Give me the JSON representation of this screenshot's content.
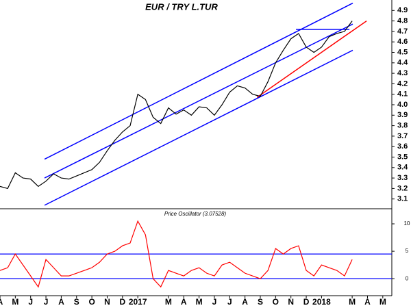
{
  "chart_data": [
    {
      "type": "line",
      "title": "EUR / TRY L.TUR",
      "x": [
        0,
        0.5,
        1,
        1.5,
        2,
        2.5,
        3,
        3.5,
        4,
        4.5,
        5,
        5.5,
        6,
        6.5,
        7,
        7.5,
        8,
        8.5,
        9,
        9.5,
        10,
        10.5,
        11,
        11.5,
        12,
        12.5,
        13,
        13.5,
        14,
        14.5,
        15,
        15.5,
        16,
        16.5,
        17,
        17.5,
        18,
        18.5,
        19,
        19.5,
        20,
        20.5,
        21,
        21.5,
        22,
        22.5,
        23
      ],
      "series": [
        {
          "color": "#000000",
          "values": [
            3.22,
            3.2,
            3.35,
            3.3,
            3.29,
            3.22,
            3.27,
            3.34,
            3.3,
            3.29,
            3.32,
            3.35,
            3.38,
            3.45,
            3.56,
            3.66,
            3.74,
            3.8,
            4.1,
            4.05,
            3.88,
            3.82,
            3.97,
            3.91,
            3.95,
            3.9,
            3.98,
            3.97,
            3.9,
            4.0,
            4.12,
            4.18,
            4.16,
            4.1,
            4.08,
            4.22,
            4.4,
            4.52,
            4.63,
            4.68,
            4.55,
            4.5,
            4.55,
            4.65,
            4.68,
            4.7,
            4.8
          ]
        }
      ],
      "lines": [
        {
          "color": "#0000ff",
          "x": [
            2.91,
            23.04
          ],
          "values": [
            3.48,
            4.97
          ]
        },
        {
          "color": "#0000ff",
          "x": [
            2.91,
            23.04
          ],
          "values": [
            3.3,
            4.77
          ]
        },
        {
          "color": "#0000ff",
          "x": [
            2.91,
            23.04
          ],
          "values": [
            3.04,
            4.52
          ]
        },
        {
          "color": "#ff0000",
          "x": [
            16.78,
            23.94
          ],
          "values": [
            4.07,
            4.8
          ]
        },
        {
          "color": "#0000ff",
          "x": [
            19.33,
            22.82
          ],
          "values": [
            4.72,
            4.72
          ]
        }
      ],
      "xlim": [
        0,
        25.5
      ],
      "ylim": [
        3.0,
        5.0
      ],
      "yticks": [
        3.1,
        3.2,
        3.3,
        3.4,
        3.5,
        3.6,
        3.7,
        3.8,
        3.9,
        {
          "value": 4,
          "label": "4.0"
        },
        4.1,
        4.2,
        4.3,
        4.4,
        4.5,
        4.6,
        4.7,
        4.8,
        4.9
      ]
    },
    {
      "type": "line",
      "title": "Price Oscillator (3.07528)",
      "x": [
        0,
        0.5,
        1,
        1.5,
        2,
        2.5,
        3,
        3.5,
        4,
        4.5,
        5,
        5.5,
        6,
        6.5,
        7,
        7.5,
        8,
        8.5,
        9,
        9.5,
        10,
        10.5,
        11,
        11.5,
        12,
        12.5,
        13,
        13.5,
        14,
        14.5,
        15,
        15.5,
        16,
        16.5,
        17,
        17.5,
        18,
        18.5,
        19,
        19.5,
        20,
        20.5,
        21,
        21.5,
        22,
        22.5,
        23
      ],
      "series": [
        {
          "color": "#ff0000",
          "values": [
            1.5,
            2.0,
            4.5,
            2.5,
            0.5,
            -1.5,
            3.5,
            2.0,
            0.5,
            0.5,
            1.0,
            1.5,
            2.0,
            3.0,
            4.5,
            5.0,
            6.0,
            6.5,
            10.5,
            8.0,
            0,
            -1.5,
            1.5,
            1.0,
            0.5,
            1.5,
            2.0,
            1.0,
            0.5,
            2.5,
            3.0,
            2.0,
            1.0,
            0.5,
            0,
            1.5,
            5.5,
            4.5,
            5.5,
            6.0,
            1.5,
            0.5,
            2.5,
            2.0,
            1.5,
            0.5,
            3.5
          ]
        }
      ],
      "hlines": [
        4.5,
        0
      ],
      "hline_color": "#0000ff",
      "xlim": [
        0,
        25.5
      ],
      "ylim": [
        -3.1,
        12.75
      ],
      "yticks": [
        10,
        5,
        0
      ],
      "xticks": [
        {
          "value": 0,
          "label": "A"
        },
        {
          "value": 1,
          "label": "M"
        },
        {
          "value": 2,
          "label": "J"
        },
        {
          "value": 3,
          "label": "J"
        },
        {
          "value": 4,
          "label": "A"
        },
        {
          "value": 5,
          "label": "S"
        },
        {
          "value": 6,
          "label": "O"
        },
        {
          "value": 7,
          "label": "N"
        },
        {
          "value": 8,
          "label": "D"
        },
        {
          "value": 9,
          "label": "2017"
        },
        {
          "value": 11,
          "label": "M"
        },
        {
          "value": 12,
          "label": "A"
        },
        {
          "value": 13,
          "label": "M"
        },
        {
          "value": 14,
          "label": "J"
        },
        {
          "value": 15,
          "label": "J"
        },
        {
          "value": 16,
          "label": "A"
        },
        {
          "value": 17,
          "label": "S"
        },
        {
          "value": 18,
          "label": "O"
        },
        {
          "value": 19,
          "label": "N"
        },
        {
          "value": 20,
          "label": "D"
        },
        {
          "value": 21,
          "label": "2018"
        },
        {
          "value": 23,
          "label": "M"
        },
        {
          "value": 24,
          "label": "A"
        },
        {
          "value": 25,
          "label": "M"
        }
      ]
    }
  ]
}
